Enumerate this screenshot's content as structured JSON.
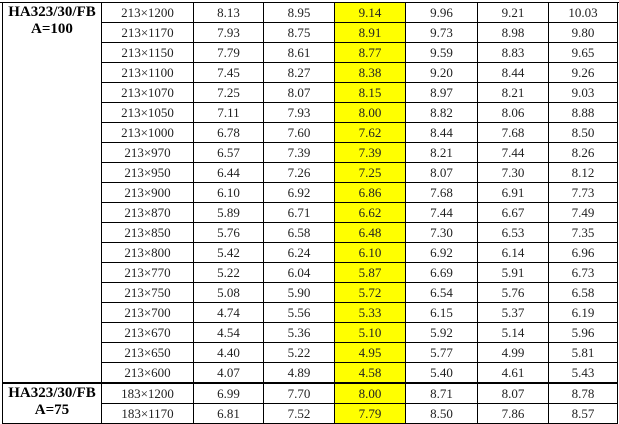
{
  "highlight_color": "#ffff00",
  "groups": [
    {
      "name": "HA323/30/FB",
      "param": "A=100",
      "rows": [
        {
          "size": "213×1200",
          "v": [
            "8.13",
            "8.95",
            "9.14",
            "9.96",
            "9.21",
            "10.03"
          ]
        },
        {
          "size": "213×1170",
          "v": [
            "7.93",
            "8.75",
            "8.91",
            "9.73",
            "8.98",
            "9.80"
          ]
        },
        {
          "size": "213×1150",
          "v": [
            "7.79",
            "8.61",
            "8.77",
            "9.59",
            "8.83",
            "9.65"
          ]
        },
        {
          "size": "213×1100",
          "v": [
            "7.45",
            "8.27",
            "8.38",
            "9.20",
            "8.44",
            "9.26"
          ]
        },
        {
          "size": "213×1070",
          "v": [
            "7.25",
            "8.07",
            "8.15",
            "8.97",
            "8.21",
            "9.03"
          ]
        },
        {
          "size": "213×1050",
          "v": [
            "7.11",
            "7.93",
            "8.00",
            "8.82",
            "8.06",
            "8.88"
          ]
        },
        {
          "size": "213×1000",
          "v": [
            "6.78",
            "7.60",
            "7.62",
            "8.44",
            "7.68",
            "8.50"
          ]
        },
        {
          "size": "213×970",
          "v": [
            "6.57",
            "7.39",
            "7.39",
            "8.21",
            "7.44",
            "8.26"
          ]
        },
        {
          "size": "213×950",
          "v": [
            "6.44",
            "7.26",
            "7.25",
            "8.07",
            "7.30",
            "8.12"
          ]
        },
        {
          "size": "213×900",
          "v": [
            "6.10",
            "6.92",
            "6.86",
            "7.68",
            "6.91",
            "7.73"
          ]
        },
        {
          "size": "213×870",
          "v": [
            "5.89",
            "6.71",
            "6.62",
            "7.44",
            "6.67",
            "7.49"
          ]
        },
        {
          "size": "213×850",
          "v": [
            "5.76",
            "6.58",
            "6.48",
            "7.30",
            "6.53",
            "7.35"
          ]
        },
        {
          "size": "213×800",
          "v": [
            "5.42",
            "6.24",
            "6.10",
            "6.92",
            "6.14",
            "6.96"
          ]
        },
        {
          "size": "213×770",
          "v": [
            "5.22",
            "6.04",
            "5.87",
            "6.69",
            "5.91",
            "6.73"
          ]
        },
        {
          "size": "213×750",
          "v": [
            "5.08",
            "5.90",
            "5.72",
            "6.54",
            "5.76",
            "6.58"
          ]
        },
        {
          "size": "213×700",
          "v": [
            "4.74",
            "5.56",
            "5.33",
            "6.15",
            "5.37",
            "6.19"
          ]
        },
        {
          "size": "213×670",
          "v": [
            "4.54",
            "5.36",
            "5.10",
            "5.92",
            "5.14",
            "5.96"
          ]
        },
        {
          "size": "213×650",
          "v": [
            "4.40",
            "5.22",
            "4.95",
            "5.77",
            "4.99",
            "5.81"
          ]
        },
        {
          "size": "213×600",
          "v": [
            "4.07",
            "4.89",
            "4.58",
            "5.40",
            "4.61",
            "5.43"
          ]
        }
      ]
    },
    {
      "name": "HA323/30/FB",
      "param": "A=75",
      "rows": [
        {
          "size": "183×1200",
          "v": [
            "6.99",
            "7.70",
            "8.00",
            "8.71",
            "8.07",
            "8.78"
          ]
        },
        {
          "size": "183×1170",
          "v": [
            "6.81",
            "7.52",
            "7.79",
            "8.50",
            "7.86",
            "8.57"
          ]
        }
      ]
    }
  ]
}
